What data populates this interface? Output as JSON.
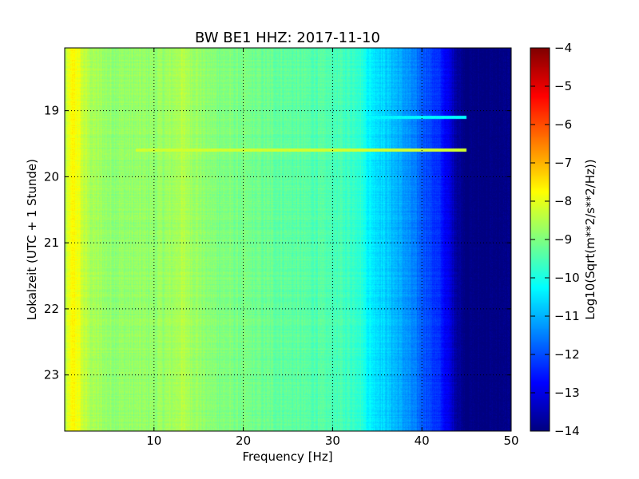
{
  "chart_data": {
    "type": "heatmap",
    "title": "BW BE1 HHZ: 2017-11-10",
    "xlabel": "Frequency [Hz]",
    "ylabel": "Lokalzeit (UTC + 1 Stunde)",
    "colorbar_label": "Log10(Sqrt(m**2/s**2/Hz))",
    "xlim": [
      0,
      50
    ],
    "ylim": [
      18.05,
      23.85
    ],
    "y_inverted": true,
    "x_ticks": [
      10,
      20,
      30,
      40,
      50
    ],
    "x_tick_labels": [
      "10",
      "20",
      "30",
      "40",
      "50"
    ],
    "y_ticks": [
      19,
      20,
      21,
      22,
      23
    ],
    "y_tick_labels": [
      "19",
      "20",
      "21",
      "22",
      "23"
    ],
    "clim": [
      -14,
      -4
    ],
    "cbar_ticks": [
      -4,
      -5,
      -6,
      -7,
      -8,
      -9,
      -10,
      -11,
      -12,
      -13,
      -14
    ],
    "cbar_tick_labels": [
      "−4",
      "−5",
      "−6",
      "−7",
      "−8",
      "−9",
      "−10",
      "−11",
      "−12",
      "−13",
      "−14"
    ],
    "colormap": "jet",
    "grid": true,
    "spectrum_profile": {
      "frequency_hz": [
        0,
        0.5,
        1,
        1.5,
        2,
        3,
        5,
        8,
        10,
        12,
        13,
        14,
        16,
        20,
        25,
        30,
        33,
        34,
        36,
        38,
        40,
        42,
        43,
        44,
        45,
        50
      ],
      "log10_amplitude": [
        -8.6,
        -8.0,
        -7.7,
        -7.9,
        -8.3,
        -8.6,
        -8.8,
        -8.8,
        -8.8,
        -8.7,
        -8.5,
        -8.6,
        -8.9,
        -9.1,
        -9.3,
        -9.5,
        -9.7,
        -10.3,
        -10.7,
        -11.2,
        -11.8,
        -12.4,
        -13.0,
        -13.7,
        -14.0,
        -14.0
      ]
    },
    "features": [
      {
        "time_h": 19.6,
        "freq_range_hz": [
          8,
          45
        ],
        "log10_amplitude": -8.2
      },
      {
        "time_h": 19.1,
        "freq_range_hz": [
          33,
          45
        ],
        "log10_amplitude": -10.3
      }
    ]
  }
}
